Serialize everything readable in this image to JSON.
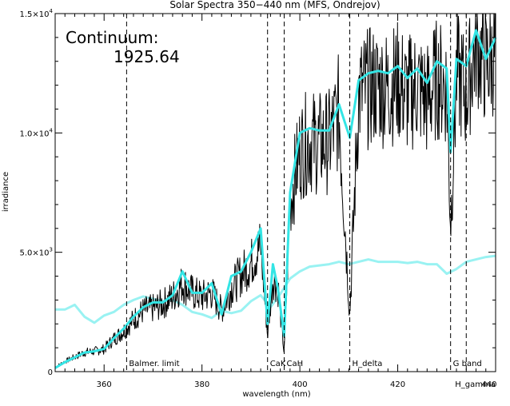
{
  "chart_data": {
    "type": "line",
    "title": "Solar Spectra 350−440 nm (MFS, Ondrejov)",
    "xlabel": "wavelength (nm)",
    "ylabel": "irradiance",
    "xlim": [
      350,
      440
    ],
    "ylim": [
      0,
      15000
    ],
    "x_ticks": [
      360,
      380,
      400,
      420,
      440
    ],
    "y_ticks": [
      {
        "value": 0,
        "base": "0",
        "exp": ""
      },
      {
        "value": 5000,
        "base": "5.0×10",
        "exp": "3"
      },
      {
        "value": 10000,
        "base": "1.0×10",
        "exp": "4"
      },
      {
        "value": 15000,
        "base": "1.5×10",
        "exp": "4"
      }
    ],
    "grid": false,
    "annotation": {
      "label": "Continuum:",
      "value": "1925.64"
    },
    "reference_lines": [
      {
        "x": 364.6,
        "label": "Balmer. limit"
      },
      {
        "x": 393.4,
        "label": "CaK"
      },
      {
        "x": 396.8,
        "label": "CaH"
      },
      {
        "x": 410.2,
        "label": "H_delta"
      },
      {
        "x": 430.8,
        "label": "G band"
      },
      {
        "x": 434.0,
        "label": "H_gamma"
      }
    ],
    "series": [
      {
        "color": "#000000",
        "style": "raw",
        "x": [
          350,
          352,
          354,
          356,
          358,
          360,
          362,
          364,
          366,
          368,
          370,
          372,
          374,
          376,
          378,
          380,
          382,
          384,
          386,
          388,
          390,
          392,
          393.4,
          394.5,
          395.5,
          396.8,
          398,
          400,
          402,
          404,
          406,
          408,
          410.2,
          412,
          414,
          416,
          418,
          420,
          422,
          424,
          426,
          428,
          430,
          430.8,
          432,
          434,
          436,
          438,
          440
        ],
        "y": [
          200,
          450,
          650,
          850,
          900,
          1000,
          1450,
          1800,
          2300,
          2700,
          2800,
          3000,
          3300,
          3900,
          3500,
          3300,
          3500,
          2700,
          3700,
          4300,
          4800,
          5600,
          1600,
          4200,
          3800,
          800,
          7500,
          9800,
          10200,
          10100,
          10200,
          11500,
          2500,
          12200,
          12500,
          12600,
          12500,
          12800,
          12200,
          12600,
          12000,
          12900,
          12600,
          6500,
          13200,
          12300,
          14300,
          13400,
          14000
        ]
      },
      {
        "color": "#33e5e5",
        "style": "smoothed",
        "x": [
          350,
          352,
          354,
          356,
          358,
          360,
          362,
          364,
          366,
          368,
          370,
          372,
          374,
          376,
          378,
          380,
          382,
          384,
          386,
          388,
          390,
          392,
          393.4,
          394.5,
          395.5,
          396.8,
          398,
          400,
          402,
          404,
          406,
          408,
          410.2,
          412,
          414,
          416,
          418,
          420,
          422,
          424,
          426,
          428,
          430,
          430.8,
          432,
          434,
          436,
          438,
          440
        ],
        "y": [
          150,
          400,
          600,
          800,
          850,
          950,
          1400,
          1800,
          2300,
          2700,
          2900,
          2900,
          3200,
          4200,
          3300,
          3300,
          3700,
          2400,
          4000,
          4200,
          5000,
          6000,
          2000,
          4500,
          3500,
          1500,
          7500,
          10000,
          10200,
          10100,
          10100,
          11200,
          9800,
          12200,
          12500,
          12600,
          12500,
          12800,
          12300,
          12700,
          12100,
          13000,
          12700,
          9200,
          13100,
          12800,
          14300,
          13100,
          14000
        ]
      },
      {
        "color": "#99f2f2",
        "style": "continuum",
        "x": [
          350,
          352,
          354,
          356,
          358,
          360,
          362,
          364,
          366,
          368,
          370,
          372,
          374,
          376,
          378,
          380,
          382,
          384,
          386,
          388,
          390,
          392,
          394,
          396,
          398,
          400,
          402,
          404,
          406,
          408,
          410,
          412,
          414,
          416,
          418,
          420,
          422,
          424,
          426,
          428,
          430,
          432,
          434,
          436,
          438,
          440
        ],
        "y": [
          2600,
          2600,
          2800,
          2300,
          2050,
          2350,
          2500,
          2800,
          3000,
          3150,
          3050,
          2950,
          3000,
          2800,
          2500,
          2400,
          2250,
          2550,
          2450,
          2550,
          2950,
          3200,
          2700,
          3250,
          3900,
          4200,
          4400,
          4450,
          4500,
          4600,
          4500,
          4600,
          4700,
          4600,
          4600,
          4600,
          4550,
          4600,
          4500,
          4500,
          4100,
          4300,
          4600,
          4700,
          4800,
          4850
        ]
      }
    ]
  }
}
